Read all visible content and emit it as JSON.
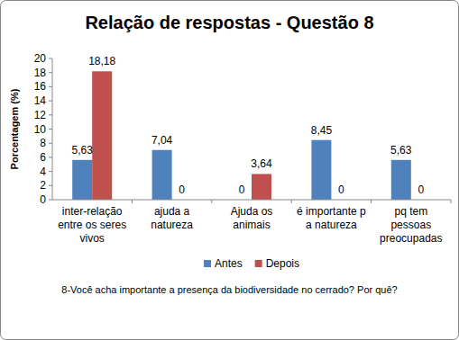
{
  "chart_data": {
    "type": "bar",
    "title": "Relação de respostas - Questão 8",
    "y_label": "Porcentagem (%)",
    "x_label": "8-Você acha importante a presença da biodiversidade no cerrado? Por quê?",
    "categories": [
      "inter-relação entre os seres vivos",
      "ajuda a natureza",
      "Ajuda os animais",
      "é importante p a natureza",
      "pq tem pessoas preocupadas"
    ],
    "series": [
      {
        "name": "Antes",
        "color": "#4f81bd",
        "values": [
          5.63,
          7.04,
          0,
          8.45,
          5.63
        ],
        "value_labels": [
          "5,63",
          "7,04",
          "0",
          "8,45",
          "5,63"
        ]
      },
      {
        "name": "Depois",
        "color": "#c0504d",
        "values": [
          18.18,
          0,
          3.64,
          0,
          0
        ],
        "value_labels": [
          "18,18",
          "0",
          "3,64",
          "0",
          "0"
        ]
      }
    ],
    "ylim": [
      0,
      20
    ],
    "yticks": [
      0,
      2,
      4,
      6,
      8,
      10,
      12,
      14,
      16,
      18,
      20
    ],
    "grid": false,
    "legend": "bottom",
    "data_labels": true
  }
}
